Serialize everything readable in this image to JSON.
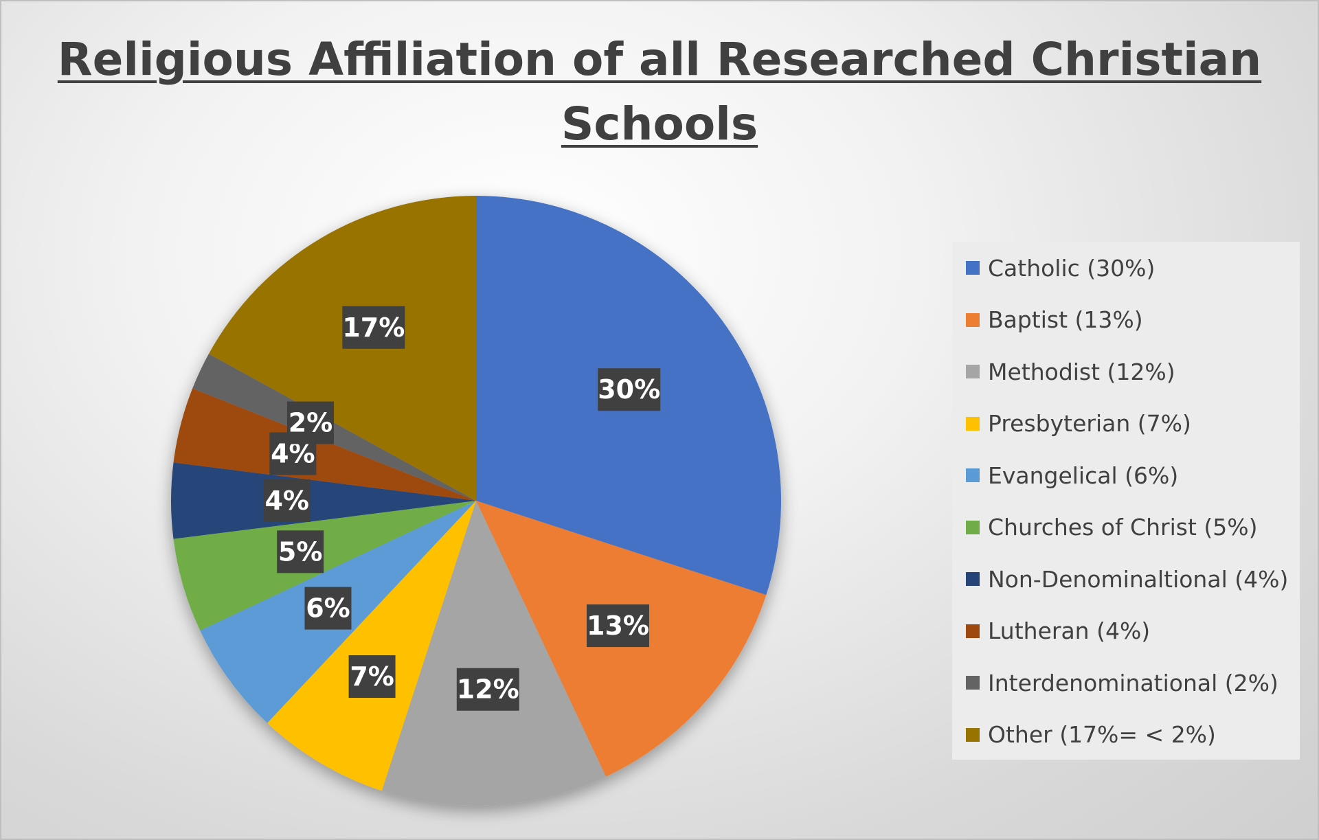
{
  "chart_data": {
    "type": "pie",
    "title": "Religious Affiliation of all Researched Christian Schools",
    "slices": [
      {
        "name": "Catholic (30%)",
        "value": 30,
        "label": "30%",
        "color": "#4472C4"
      },
      {
        "name": "Baptist (13%)",
        "value": 13,
        "label": "13%",
        "color": "#ED7D31"
      },
      {
        "name": "Methodist (12%)",
        "value": 12,
        "label": "12%",
        "color": "#A5A5A5"
      },
      {
        "name": "Presbyterian (7%)",
        "value": 7,
        "label": "7%",
        "color": "#FFC000"
      },
      {
        "name": "Evangelical (6%)",
        "value": 6,
        "label": "6%",
        "color": "#5B9BD5"
      },
      {
        "name": "Churches of Christ (5%)",
        "value": 5,
        "label": "5%",
        "color": "#70AD47"
      },
      {
        "name": "Non-Denominaltional (4%)",
        "value": 4,
        "label": "4%",
        "color": "#264478"
      },
      {
        "name": "Lutheran (4%)",
        "value": 4,
        "label": "4%",
        "color": "#9E480E"
      },
      {
        "name": "Interdenominational (2%)",
        "value": 2,
        "label": "2%",
        "color": "#636363"
      },
      {
        "name": "Other (17%= < 2%)",
        "value": 17,
        "label": "17%",
        "color": "#997300"
      }
    ],
    "legend_position": "right"
  }
}
